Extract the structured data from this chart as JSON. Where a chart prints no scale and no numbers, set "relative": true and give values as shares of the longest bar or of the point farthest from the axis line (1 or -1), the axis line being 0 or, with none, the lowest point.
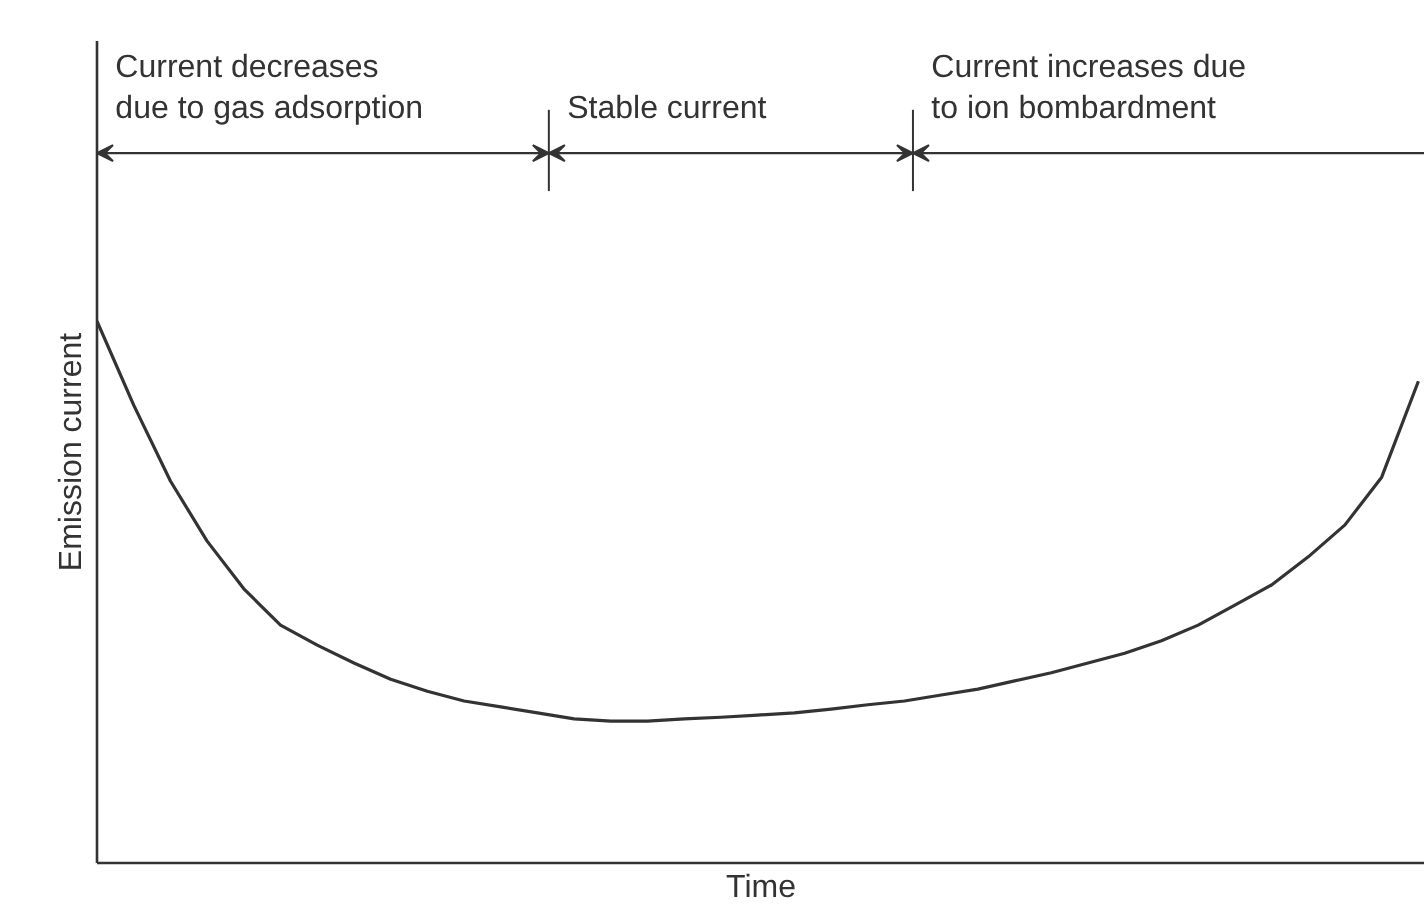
{
  "chart_data": {
    "type": "line",
    "relative": true,
    "xlabel": "Time",
    "ylabel": "Emission current",
    "categories": [
      null,
      null,
      null,
      null,
      null,
      null,
      null,
      null,
      null,
      null,
      null,
      null,
      null,
      null,
      null,
      null,
      null,
      null,
      null,
      null,
      null,
      null,
      null,
      null,
      null,
      null,
      null,
      null,
      null,
      null,
      null,
      null,
      null,
      null,
      null,
      null,
      null
    ],
    "series": [
      {
        "color": "#333333",
        "values": [
          1.0,
          0.845,
          0.705,
          0.594,
          0.506,
          0.439,
          0.402,
          0.369,
          0.339,
          0.317,
          0.299,
          0.288,
          0.277,
          0.266,
          0.262,
          0.262,
          0.266,
          0.269,
          0.273,
          0.277,
          0.284,
          0.292,
          0.299,
          0.31,
          0.321,
          0.336,
          0.351,
          0.369,
          0.387,
          0.41,
          0.439,
          0.476,
          0.513,
          0.565,
          0.624,
          0.712,
          0.889
        ]
      }
    ],
    "annotations": [
      "Current decreases\ndue to gas adsorption",
      "Stable current",
      "Current increases due\nto ion bombardment"
    ],
    "marker": "none",
    "line_style": "solid",
    "tick_labels": false
  }
}
